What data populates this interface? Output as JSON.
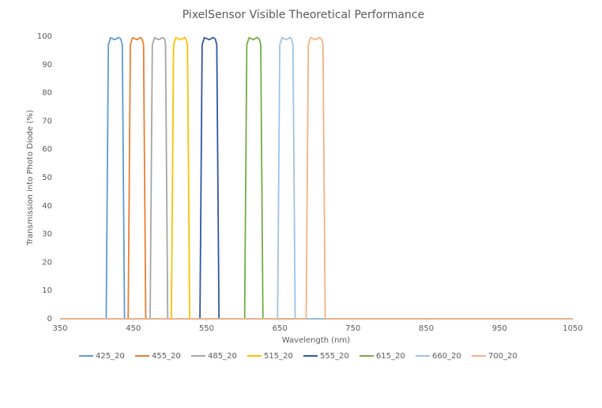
{
  "chart_data": {
    "type": "line",
    "title": "PixelSensor Visible Theoretical Performance",
    "x_label": "Wavelength (nm)",
    "y_label": "Transmission into Photo Diode (%)",
    "xlim": [
      350,
      1050
    ],
    "xticks": [
      350,
      450,
      550,
      650,
      750,
      850,
      950,
      1050
    ],
    "ylim": [
      0,
      100
    ],
    "yticks": [
      0,
      10,
      20,
      30,
      40,
      50,
      60,
      70,
      80,
      90,
      100
    ],
    "grid": false,
    "legend": "bottom",
    "series": [
      {
        "name": "425_20",
        "color": "#5b9bd5",
        "x": [
          350,
          413,
          416,
          419,
          425,
          430,
          433,
          435,
          438,
          1050
        ],
        "values": [
          0,
          0,
          97,
          99.5,
          98.8,
          99.6,
          99,
          97,
          0,
          0
        ]
      },
      {
        "name": "455_20",
        "color": "#ed7d31",
        "x": [
          350,
          443,
          446,
          449,
          455,
          460,
          462,
          464,
          467,
          1050
        ],
        "values": [
          0,
          0,
          97,
          99.5,
          98.8,
          99.6,
          99,
          97,
          0,
          0
        ]
      },
      {
        "name": "485_20",
        "color": "#a5a5a5",
        "x": [
          350,
          473,
          476,
          479,
          485,
          490,
          493,
          494,
          497,
          1050
        ],
        "values": [
          0,
          0,
          97,
          99.5,
          98.8,
          99.6,
          99,
          97,
          0,
          0
        ]
      },
      {
        "name": "515_20",
        "color": "#ffc000",
        "x": [
          350,
          502,
          505,
          508,
          515,
          520,
          522,
          524,
          527,
          1050
        ],
        "values": [
          0,
          0,
          97,
          99.5,
          98.8,
          99.6,
          99,
          97,
          0,
          0
        ]
      },
      {
        "name": "555_20",
        "color": "#2f55a4",
        "x": [
          350,
          541,
          544,
          547,
          554,
          559,
          562,
          564,
          567,
          1050
        ],
        "values": [
          0,
          0,
          97,
          99.5,
          98.8,
          99.6,
          99,
          97,
          0,
          0
        ]
      },
      {
        "name": "615_20",
        "color": "#70ad47",
        "x": [
          350,
          602,
          605,
          608,
          614,
          619,
          622,
          624,
          627,
          1050
        ],
        "values": [
          0,
          0,
          97,
          99.5,
          98.8,
          99.6,
          99,
          97,
          0,
          0
        ]
      },
      {
        "name": "660_20",
        "color": "#9dc3e6",
        "x": [
          350,
          647,
          650,
          653,
          659,
          664,
          666,
          668,
          671,
          1050
        ],
        "values": [
          0,
          0,
          97,
          99.5,
          98.8,
          99.6,
          99,
          97,
          0,
          0
        ]
      },
      {
        "name": "700_20",
        "color": "#f4b183",
        "x": [
          350,
          686,
          689,
          692,
          699,
          704,
          707,
          709,
          712,
          1050
        ],
        "values": [
          0,
          0,
          97,
          99.5,
          98.8,
          99.6,
          99,
          97,
          0,
          0
        ]
      }
    ]
  }
}
